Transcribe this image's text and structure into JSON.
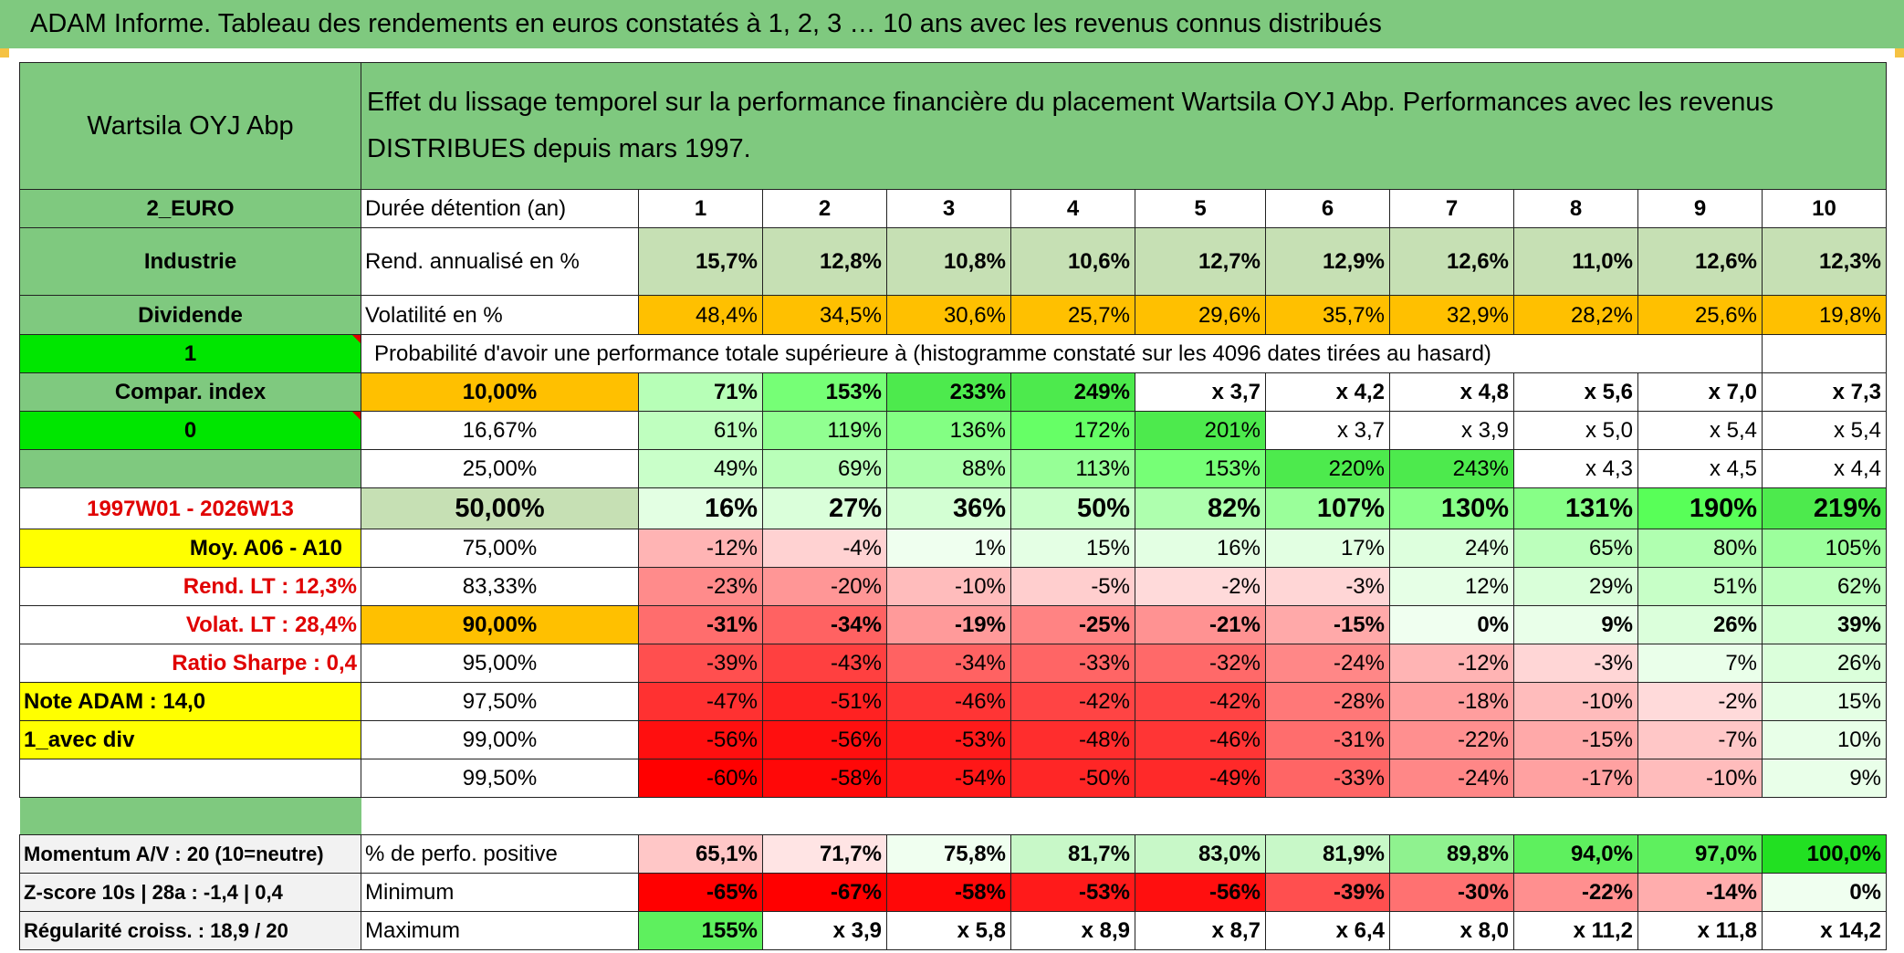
{
  "title": "ADAM Informe. Tableau des rendements en euros constatés à 1, 2, 3 … 10 ans avec les revenus connus distribués",
  "left": {
    "name": "Wartsila OYJ Abp",
    "code": "2_EURO",
    "sector": "Industrie",
    "income_type": "Dividende",
    "one": "1",
    "compar_index": "Compar. index",
    "zero": "0",
    "period": "1997W01 - 2026W13",
    "moy": "Moy. A06 - A10",
    "rend_lt": "Rend. LT :    12,3%",
    "volat_lt": "Volat. LT :    28,4%",
    "sharpe": "Ratio Sharpe :    0,4",
    "note": "Note ADAM : 14,0",
    "avec_div": "1_avec div",
    "momentum": "Momentum A/V : 20 (10=neutre)",
    "zscore": "Z-score 10s | 28a : -1,4 | 0,4",
    "regularite": "Régularité croiss. : 18,9 / 20"
  },
  "header_desc": "Effet du lissage temporel sur la performance financière du placement Wartsila OYJ Abp. Performances avec les revenus DISTRIBUES depuis mars 1997.",
  "duree_label": "Durée détention (an)",
  "years": [
    "1",
    "2",
    "3",
    "4",
    "5",
    "6",
    "7",
    "8",
    "9",
    "10"
  ],
  "rend_label": "Rend. annualisé en %",
  "rend": [
    "15,7%",
    "12,8%",
    "10,8%",
    "10,6%",
    "12,7%",
    "12,9%",
    "12,6%",
    "11,0%",
    "12,6%",
    "12,3%"
  ],
  "vol_label": "Volatilité en %",
  "vol": [
    "48,4%",
    "34,5%",
    "30,6%",
    "25,7%",
    "29,6%",
    "35,7%",
    "32,9%",
    "28,2%",
    "25,6%",
    "19,8%"
  ],
  "prob_label": "Probabilité d'avoir une performance totale supérieure à (histogramme constaté sur les 4096 dates tirées au hasard)",
  "prob_rows": [
    {
      "pct": "10,00%",
      "vals": [
        "71%",
        "153%",
        "233%",
        "249%",
        "x 3,7",
        "x 4,2",
        "x 4,8",
        "x 5,6",
        "x 7,0",
        "x 7,3"
      ]
    },
    {
      "pct": "16,67%",
      "vals": [
        "61%",
        "119%",
        "136%",
        "172%",
        "201%",
        "x 3,7",
        "x 3,9",
        "x 5,0",
        "x 5,4",
        "x 5,4"
      ]
    },
    {
      "pct": "25,00%",
      "vals": [
        "49%",
        "69%",
        "88%",
        "113%",
        "153%",
        "220%",
        "243%",
        "x 4,3",
        "x 4,5",
        "x 4,4"
      ]
    },
    {
      "pct": "50,00%",
      "vals": [
        "16%",
        "27%",
        "36%",
        "50%",
        "82%",
        "107%",
        "130%",
        "131%",
        "190%",
        "219%"
      ]
    },
    {
      "pct": "75,00%",
      "vals": [
        "-12%",
        "-4%",
        "1%",
        "15%",
        "16%",
        "17%",
        "24%",
        "65%",
        "80%",
        "105%"
      ]
    },
    {
      "pct": "83,33%",
      "vals": [
        "-23%",
        "-20%",
        "-10%",
        "-5%",
        "-2%",
        "-3%",
        "12%",
        "29%",
        "51%",
        "62%"
      ]
    },
    {
      "pct": "90,00%",
      "vals": [
        "-31%",
        "-34%",
        "-19%",
        "-25%",
        "-21%",
        "-15%",
        "0%",
        "9%",
        "26%",
        "39%"
      ]
    },
    {
      "pct": "95,00%",
      "vals": [
        "-39%",
        "-43%",
        "-34%",
        "-33%",
        "-32%",
        "-24%",
        "-12%",
        "-3%",
        "7%",
        "26%"
      ]
    },
    {
      "pct": "97,50%",
      "vals": [
        "-47%",
        "-51%",
        "-46%",
        "-42%",
        "-42%",
        "-28%",
        "-18%",
        "-10%",
        "-2%",
        "15%"
      ]
    },
    {
      "pct": "99,00%",
      "vals": [
        "-56%",
        "-56%",
        "-53%",
        "-48%",
        "-46%",
        "-31%",
        "-22%",
        "-15%",
        "-7%",
        "10%"
      ]
    },
    {
      "pct": "99,50%",
      "vals": [
        "-60%",
        "-58%",
        "-54%",
        "-50%",
        "-49%",
        "-33%",
        "-24%",
        "-17%",
        "-10%",
        "9%"
      ]
    }
  ],
  "pos_label": "% de perfo. positive",
  "pos": [
    "65,1%",
    "71,7%",
    "75,8%",
    "81,7%",
    "83,0%",
    "81,9%",
    "89,8%",
    "94,0%",
    "97,0%",
    "100,0%"
  ],
  "min_label": "Minimum",
  "min": [
    "-65%",
    "-67%",
    "-58%",
    "-53%",
    "-56%",
    "-39%",
    "-30%",
    "-22%",
    "-14%",
    "0%"
  ],
  "max_label": "Maximum",
  "max": [
    "155%",
    "x 3,9",
    "x 5,8",
    "x 8,9",
    "x 8,7",
    "x 6,4",
    "x 8,0",
    "x 11,2",
    "x 11,8",
    "x 14,2"
  ],
  "colors": {
    "header_green": "#7fc97f",
    "light_green": "#c6e0b4",
    "orange": "#ffc000",
    "yellow": "#ffff00",
    "bright_green": "#00e600",
    "red_text": "#e00000"
  }
}
